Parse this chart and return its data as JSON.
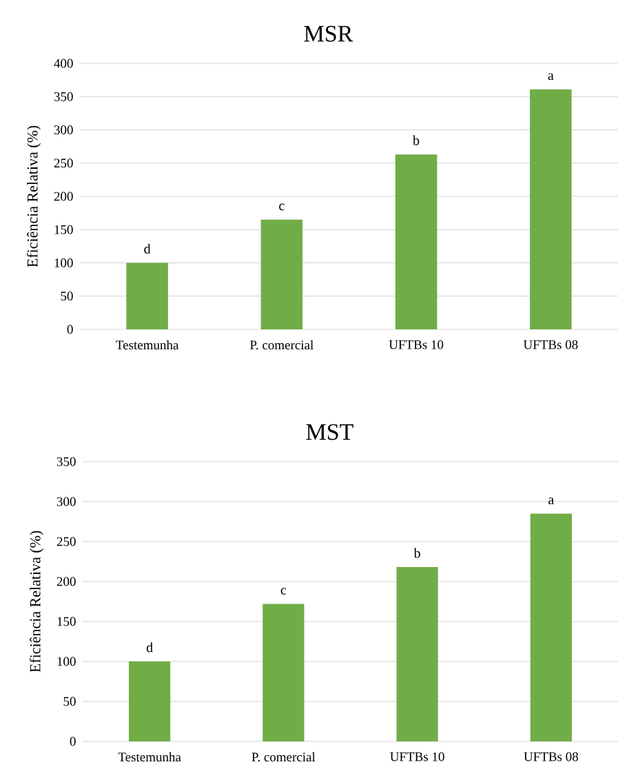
{
  "chart_data": [
    {
      "type": "bar",
      "title": "MSR",
      "ylabel": "Eficiência Relativa (%)",
      "categories": [
        "Testemunha",
        "P. comercial",
        "UFTBs 10",
        "UFTBs 08"
      ],
      "values": [
        100,
        165,
        263,
        361
      ],
      "color": "#70ad47",
      "ylim": [
        0,
        400
      ],
      "yticks": [
        0,
        50,
        100,
        150,
        200,
        250,
        300,
        350,
        400
      ],
      "grid": "y",
      "annotations": [
        {
          "text": "d",
          "x": "Testemunha",
          "y": 100
        },
        {
          "text": "c",
          "x": "P. comercial",
          "y": 165
        },
        {
          "text": "b",
          "x": "UFTBs 10",
          "y": 263
        },
        {
          "text": "a",
          "x": "UFTBs 08",
          "y": 361
        }
      ]
    },
    {
      "type": "bar",
      "title": "MST",
      "ylabel": "Eficiência Relativa (%)",
      "categories": [
        "Testemunha",
        "P. comercial",
        "UFTBs 10",
        "UFTBs 08"
      ],
      "values": [
        100,
        172,
        218,
        285
      ],
      "color": "#70ad47",
      "ylim": [
        0,
        350
      ],
      "yticks": [
        0,
        50,
        100,
        150,
        200,
        250,
        300,
        350
      ],
      "grid": "y",
      "annotations": [
        {
          "text": "d",
          "x": "Testemunha",
          "y": 100
        },
        {
          "text": "c",
          "x": "P. comercial",
          "y": 172
        },
        {
          "text": "b",
          "x": "UFTBs 10",
          "y": 218
        },
        {
          "text": "a",
          "x": "UFTBs 08",
          "y": 285
        }
      ]
    }
  ]
}
